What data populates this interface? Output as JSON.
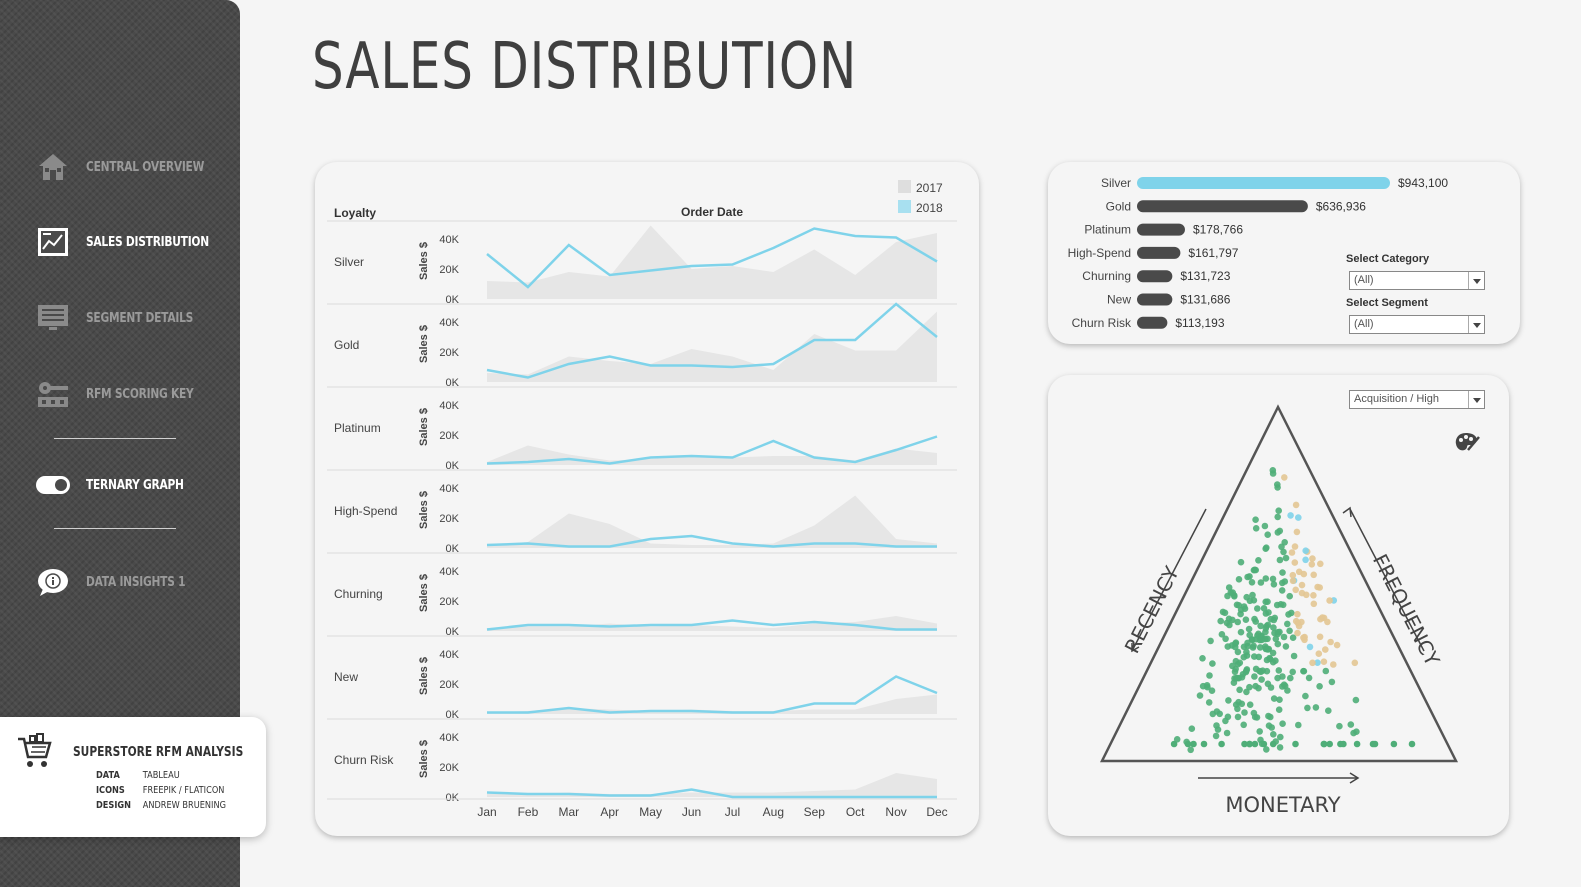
{
  "sidebar": {
    "items": [
      {
        "label": "CENTRAL OVERVIEW",
        "icon": "home-icon",
        "active": false
      },
      {
        "label": "SALES DISTRIBUTION",
        "icon": "chart-icon",
        "active": true
      },
      {
        "label": "SEGMENT DETAILS",
        "icon": "monitor-icon",
        "active": false
      },
      {
        "label": "RFM SCORING KEY",
        "icon": "key-icon",
        "active": false
      },
      {
        "label": "TERNARY GRAPH",
        "icon": "toggle-icon",
        "active": true
      },
      {
        "label": "DATA INSIGHTS 1",
        "icon": "info-bubble-icon",
        "active": false
      }
    ],
    "credits": {
      "title": "SUPERSTORE RFM ANALYSIS",
      "rows": [
        {
          "k": "DATA",
          "v": "TABLEAU"
        },
        {
          "k": "ICONS",
          "v": "FREEPIK / FLATICON"
        },
        {
          "k": "DESIGN",
          "v": "ANDREW BRUENING"
        }
      ]
    }
  },
  "page": {
    "title": "SALES DISTRIBUTION"
  },
  "line_panel": {
    "row_header": "Loyalty",
    "col_header": "Order Date",
    "ylabel": "Sales $",
    "yticks": [
      "40K",
      "20K",
      "0K"
    ],
    "months": [
      "Jan",
      "Feb",
      "Mar",
      "Apr",
      "May",
      "Jun",
      "Jul",
      "Aug",
      "Sep",
      "Oct",
      "Nov",
      "Dec"
    ],
    "legend": [
      {
        "name": "2017",
        "color": "#dedede"
      },
      {
        "name": "2018",
        "color": "#a8e0f0"
      }
    ]
  },
  "bar_panel": {
    "select_category_label": "Select Category",
    "select_category_value": "(All)",
    "select_segment_label": "Select Segment",
    "select_segment_value": "(All)"
  },
  "ternary": {
    "dropdown_value": "Acquisition / High",
    "axes": {
      "left": "RECENCY",
      "right": "FREQUENCY",
      "bottom": "MONETARY"
    },
    "colors": {
      "green": "#4fae78",
      "tan": "#e3c694",
      "blue": "#7fd3ea"
    }
  },
  "chart_data": [
    {
      "type": "line",
      "x": [
        "Jan",
        "Feb",
        "Mar",
        "Apr",
        "May",
        "Jun",
        "Jul",
        "Aug",
        "Sep",
        "Oct",
        "Nov",
        "Dec"
      ],
      "ylim": [
        0,
        40000
      ],
      "rows": [
        {
          "name": "Silver",
          "series": [
            {
              "name": "2017",
              "values": [
                12000,
                11000,
                18000,
                15000,
                49000,
                20000,
                22000,
                18000,
                33000,
                16000,
                38000,
                44000
              ]
            },
            {
              "name": "2018",
              "values": [
                30000,
                8000,
                36000,
                16000,
                19000,
                22000,
                23000,
                34000,
                47000,
                42000,
                41000,
                25000
              ]
            }
          ]
        },
        {
          "name": "Gold",
          "series": [
            {
              "name": "2017",
              "values": [
                6000,
                5000,
                17000,
                14000,
                12000,
                22000,
                17000,
                8000,
                32000,
                21000,
                21000,
                47000
              ]
            },
            {
              "name": "2018",
              "values": [
                8000,
                3000,
                12000,
                17000,
                11000,
                11000,
                10000,
                12000,
                28000,
                28000,
                52000,
                30000
              ]
            }
          ]
        },
        {
          "name": "Platinum",
          "series": [
            {
              "name": "2017",
              "values": [
                2000,
                13000,
                7000,
                3000,
                4000,
                6000,
                5000,
                6000,
                6000,
                3000,
                11000,
                8000
              ]
            },
            {
              "name": "2018",
              "values": [
                1000,
                2000,
                4000,
                1000,
                5000,
                6000,
                5000,
                16000,
                5000,
                2000,
                10000,
                19000
              ]
            }
          ]
        },
        {
          "name": "High-Spend",
          "series": [
            {
              "name": "2017",
              "values": [
                2000,
                4000,
                23000,
                16000,
                3000,
                2000,
                2000,
                3000,
                15000,
                35000,
                6000,
                3000
              ]
            },
            {
              "name": "2018",
              "values": [
                2000,
                3000,
                1000,
                1000,
                6000,
                8000,
                3000,
                1000,
                3000,
                3000,
                1000,
                1000
              ]
            }
          ]
        },
        {
          "name": "Churning",
          "series": [
            {
              "name": "2017",
              "values": [
                2000,
                3000,
                3000,
                5000,
                3000,
                4000,
                3000,
                2000,
                5000,
                6000,
                10000,
                5000
              ]
            },
            {
              "name": "2018",
              "values": [
                1000,
                4000,
                4000,
                3000,
                4000,
                4000,
                7000,
                4000,
                6000,
                4000,
                1000,
                1000
              ]
            }
          ]
        },
        {
          "name": "New",
          "series": [
            {
              "name": "2017",
              "values": [
                1000,
                2000,
                4000,
                3000,
                2000,
                3000,
                2000,
                2000,
                3000,
                3000,
                10000,
                13000
              ]
            },
            {
              "name": "2018",
              "values": [
                1000,
                1000,
                4000,
                1000,
                2000,
                2000,
                1000,
                1000,
                7000,
                7000,
                25000,
                14000
              ]
            }
          ]
        },
        {
          "name": "Churn Risk",
          "series": [
            {
              "name": "2017",
              "values": [
                2000,
                2000,
                3000,
                2000,
                2000,
                3000,
                3000,
                3000,
                4000,
                5000,
                16000,
                12000
              ]
            },
            {
              "name": "2018",
              "values": [
                3000,
                2000,
                2000,
                1000,
                1000,
                5000,
                0,
                0,
                0,
                0,
                0,
                0
              ]
            }
          ]
        }
      ]
    },
    {
      "type": "bar",
      "categories": [
        "Silver",
        "Gold",
        "Platinum",
        "High-Spend",
        "Churning",
        "New",
        "Churn Risk"
      ],
      "values": [
        943100,
        636936,
        178766,
        161797,
        131723,
        131686,
        113193
      ],
      "labels": [
        "$943,100",
        "$636,936",
        "$178,766",
        "$161,797",
        "$131,723",
        "$131,686",
        "$113,193"
      ],
      "highlight_color": "#7fd3ea",
      "bar_color": "#4a4a4a"
    }
  ]
}
